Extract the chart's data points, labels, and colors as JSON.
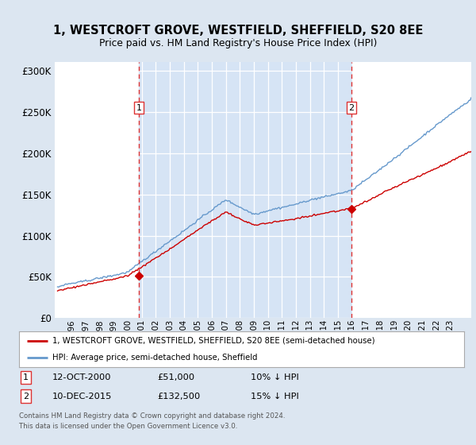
{
  "title": "1, WESTCROFT GROVE, WESTFIELD, SHEFFIELD, S20 8EE",
  "subtitle": "Price paid vs. HM Land Registry's House Price Index (HPI)",
  "legend_line1": "1, WESTCROFT GROVE, WESTFIELD, SHEFFIELD, S20 8EE (semi-detached house)",
  "legend_line2": "HPI: Average price, semi-detached house, Sheffield",
  "footer1": "Contains HM Land Registry data © Crown copyright and database right 2024.",
  "footer2": "This data is licensed under the Open Government Licence v3.0.",
  "sale1_date": "12-OCT-2000",
  "sale1_price": 51000,
  "sale1_label": "1",
  "sale1_hpi_note": "10% ↓ HPI",
  "sale2_date": "10-DEC-2015",
  "sale2_price": 132500,
  "sale2_label": "2",
  "sale2_hpi_note": "15% ↓ HPI",
  "background_color": "#dce6f1",
  "plot_bg_color": "#ffffff",
  "shade_color": "#d6e4f5",
  "red_color": "#cc0000",
  "blue_color": "#6699cc",
  "dashed_color": "#dd3333",
  "ylim": [
    0,
    310000
  ],
  "yticks": [
    0,
    50000,
    100000,
    150000,
    200000,
    250000,
    300000
  ],
  "xtick_start": 1996,
  "xtick_end": 2023,
  "xlim_left": 1994.8,
  "xlim_right": 2024.5
}
